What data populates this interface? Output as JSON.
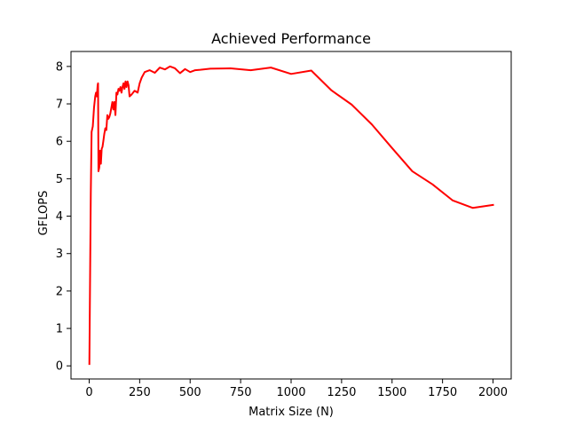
{
  "chart_data": {
    "type": "line",
    "title": "Achieved Performance",
    "xlabel": "Matrix Size (N)",
    "ylabel": "GFLOPS",
    "xlim": [
      -90,
      2090
    ],
    "ylim": [
      -0.35,
      8.4
    ],
    "xticks": [
      0,
      250,
      500,
      750,
      1000,
      1250,
      1500,
      1750,
      2000
    ],
    "yticks": [
      0,
      1,
      2,
      3,
      4,
      5,
      6,
      7,
      8
    ],
    "grid": false,
    "series": [
      {
        "color": "#ff0000",
        "points": [
          [
            1,
            0.05
          ],
          [
            8,
            4.6
          ],
          [
            12,
            6.25
          ],
          [
            18,
            6.4
          ],
          [
            24,
            6.9
          ],
          [
            30,
            7.2
          ],
          [
            34,
            7.3
          ],
          [
            38,
            7.2
          ],
          [
            42,
            7.5
          ],
          [
            44,
            7.55
          ],
          [
            46,
            5.2
          ],
          [
            50,
            5.3
          ],
          [
            54,
            5.75
          ],
          [
            58,
            5.4
          ],
          [
            62,
            5.8
          ],
          [
            66,
            5.85
          ],
          [
            70,
            6.0
          ],
          [
            75,
            6.2
          ],
          [
            80,
            6.35
          ],
          [
            85,
            6.3
          ],
          [
            90,
            6.7
          ],
          [
            95,
            6.6
          ],
          [
            100,
            6.65
          ],
          [
            105,
            6.75
          ],
          [
            110,
            6.9
          ],
          [
            115,
            7.05
          ],
          [
            120,
            6.85
          ],
          [
            125,
            7.05
          ],
          [
            130,
            6.7
          ],
          [
            135,
            7.3
          ],
          [
            140,
            7.25
          ],
          [
            145,
            7.4
          ],
          [
            150,
            7.35
          ],
          [
            155,
            7.45
          ],
          [
            160,
            7.3
          ],
          [
            165,
            7.45
          ],
          [
            170,
            7.55
          ],
          [
            175,
            7.4
          ],
          [
            180,
            7.6
          ],
          [
            185,
            7.45
          ],
          [
            190,
            7.6
          ],
          [
            195,
            7.5
          ],
          [
            200,
            7.2
          ],
          [
            210,
            7.25
          ],
          [
            225,
            7.35
          ],
          [
            240,
            7.3
          ],
          [
            250,
            7.55
          ],
          [
            260,
            7.7
          ],
          [
            275,
            7.85
          ],
          [
            300,
            7.9
          ],
          [
            325,
            7.83
          ],
          [
            350,
            7.97
          ],
          [
            375,
            7.92
          ],
          [
            400,
            8.0
          ],
          [
            425,
            7.95
          ],
          [
            450,
            7.82
          ],
          [
            475,
            7.93
          ],
          [
            500,
            7.85
          ],
          [
            525,
            7.9
          ],
          [
            550,
            7.91
          ],
          [
            600,
            7.94
          ],
          [
            700,
            7.95
          ],
          [
            800,
            7.9
          ],
          [
            900,
            7.97
          ],
          [
            1000,
            7.8
          ],
          [
            1100,
            7.89
          ],
          [
            1200,
            7.36
          ],
          [
            1300,
            6.98
          ],
          [
            1400,
            6.45
          ],
          [
            1500,
            5.82
          ],
          [
            1600,
            5.2
          ],
          [
            1700,
            4.85
          ],
          [
            1800,
            4.42
          ],
          [
            1900,
            4.22
          ],
          [
            2000,
            4.3
          ]
        ]
      }
    ]
  }
}
